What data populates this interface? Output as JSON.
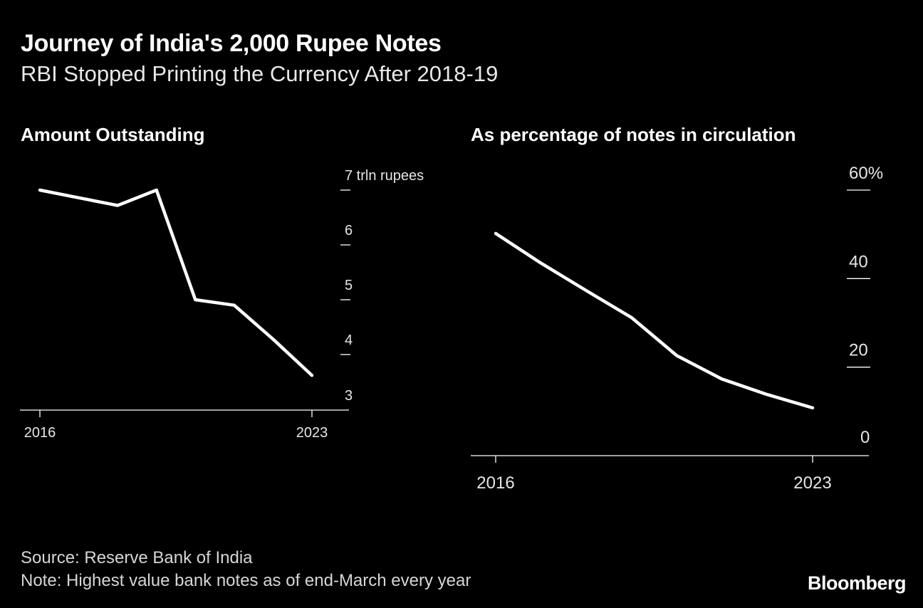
{
  "header": {
    "title": "Journey of India's 2,000 Rupee Notes",
    "subtitle": "RBI Stopped Printing the Currency After 2018-19"
  },
  "chart_data": [
    {
      "type": "line",
      "title": "Amount Outstanding",
      "unit_label": "7 trln rupees",
      "x": [
        2016,
        2017,
        2018,
        2019,
        2020,
        2021,
        2022,
        2023
      ],
      "values": [
        7.0,
        6.86,
        6.72,
        7.0,
        5.0,
        4.9,
        4.28,
        3.62
      ],
      "xticks": [
        "2016",
        "2023"
      ],
      "yticks": [
        "7 trln rupees",
        "6",
        "5",
        "4",
        "3"
      ],
      "ytick_values": [
        7,
        6,
        5,
        4,
        3
      ],
      "ylim": [
        3,
        7
      ],
      "xlabel": "",
      "ylabel": "trln rupees"
    },
    {
      "type": "line",
      "title": "As percentage of notes in circulation",
      "x": [
        2016,
        2017,
        2018,
        2019,
        2020,
        2021,
        2022,
        2023
      ],
      "values": [
        50.2,
        43.5,
        37.3,
        31.2,
        22.6,
        17.3,
        13.8,
        10.8
      ],
      "xticks": [
        "2016",
        "2023"
      ],
      "yticks": [
        "60%",
        "40",
        "20",
        "0"
      ],
      "ytick_values": [
        60,
        40,
        20,
        0
      ],
      "ylim": [
        0,
        60
      ],
      "xlabel": "",
      "ylabel": "%"
    }
  ],
  "footer": {
    "source": "Source: Reserve Bank of India",
    "note": "Note: Highest value bank notes as of end-March every year",
    "brand": "Bloomberg"
  }
}
